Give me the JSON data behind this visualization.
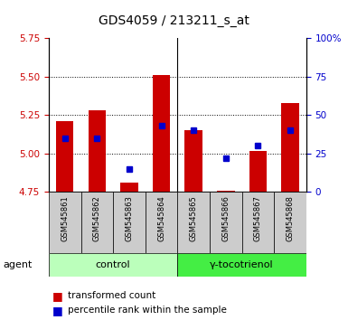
{
  "title": "GDS4059 / 213211_s_at",
  "samples": [
    "GSM545861",
    "GSM545862",
    "GSM545863",
    "GSM545864",
    "GSM545865",
    "GSM545866",
    "GSM545867",
    "GSM545868"
  ],
  "red_values": [
    5.21,
    5.28,
    4.81,
    5.51,
    5.15,
    4.76,
    5.02,
    5.33
  ],
  "blue_pct": [
    35,
    35,
    15,
    43,
    40,
    22,
    30,
    40
  ],
  "ylim_left": [
    4.75,
    5.75
  ],
  "ylim_right": [
    0,
    100
  ],
  "yticks_left": [
    4.75,
    5.0,
    5.25,
    5.5,
    5.75
  ],
  "yticks_right": [
    0,
    25,
    50,
    75,
    100
  ],
  "ytick_labels_right": [
    "0",
    "25",
    "50",
    "75",
    "100%"
  ],
  "base_value": 4.75,
  "groups": [
    {
      "label": "control",
      "indices": [
        0,
        1,
        2,
        3
      ],
      "color": "#bbffbb"
    },
    {
      "label": "γ-tocotrienol",
      "indices": [
        4,
        5,
        6,
        7
      ],
      "color": "#44ee44"
    }
  ],
  "agent_label": "agent",
  "bar_width": 0.55,
  "red_color": "#cc0000",
  "blue_color": "#0000cc",
  "tick_bg_color": "#cccccc",
  "left_tick_color": "#cc0000",
  "right_tick_color": "#0000cc",
  "grid_dotted": [
    5.0,
    5.25,
    5.5
  ],
  "figsize": [
    3.85,
    3.54
  ],
  "dpi": 100
}
